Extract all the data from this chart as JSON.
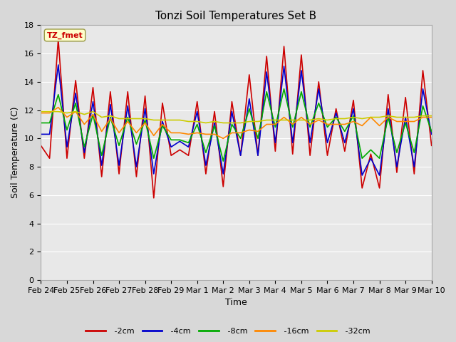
{
  "title": "Tonzi Soil Temperatures Set B",
  "xlabel": "Time",
  "ylabel": "Soil Temperature (C)",
  "legend_label": "TZ_fmet",
  "ylim": [
    0,
    18
  ],
  "yticks": [
    0,
    2,
    4,
    6,
    8,
    10,
    12,
    14,
    16,
    18
  ],
  "x_labels": [
    "Feb 24",
    "Feb 25",
    "Feb 26",
    "Feb 27",
    "Feb 28",
    "Feb 29",
    "Mar 1",
    "Mar 2",
    "Mar 3",
    "Mar 4",
    "Mar 5",
    "Mar 6",
    "Mar 7",
    "Mar 8",
    "Mar 9",
    "Mar 10"
  ],
  "series": {
    "-2cm": {
      "color": "#cc0000",
      "data": [
        9.5,
        8.6,
        17.0,
        8.6,
        14.1,
        8.6,
        13.6,
        7.3,
        13.3,
        7.5,
        13.3,
        7.3,
        13.0,
        5.8,
        12.5,
        8.8,
        9.2,
        8.8,
        12.6,
        7.5,
        11.9,
        6.6,
        12.6,
        8.8,
        14.5,
        8.8,
        15.8,
        9.1,
        16.5,
        8.9,
        15.9,
        8.8,
        14.0,
        8.8,
        12.1,
        9.1,
        12.7,
        6.5,
        8.9,
        6.5,
        13.1,
        7.6,
        12.9,
        7.5,
        14.8,
        9.5
      ]
    },
    "-4cm": {
      "color": "#0000cc",
      "data": [
        10.3,
        10.3,
        15.2,
        9.4,
        13.2,
        9.0,
        12.6,
        8.1,
        12.4,
        8.1,
        12.3,
        8.0,
        12.1,
        7.5,
        11.2,
        9.4,
        9.8,
        9.4,
        11.9,
        8.1,
        11.1,
        7.5,
        11.9,
        8.8,
        12.8,
        8.8,
        14.7,
        9.7,
        15.1,
        9.7,
        14.8,
        9.7,
        13.5,
        9.7,
        11.8,
        9.7,
        12.1,
        7.4,
        8.6,
        7.4,
        12.1,
        8.0,
        11.5,
        8.0,
        13.5,
        10.3
      ]
    },
    "-8cm": {
      "color": "#00aa00",
      "data": [
        11.1,
        11.1,
        13.1,
        10.6,
        12.5,
        9.4,
        11.7,
        8.8,
        11.5,
        9.5,
        11.5,
        9.6,
        11.3,
        8.6,
        10.9,
        9.9,
        9.9,
        9.7,
        11.0,
        9.0,
        10.9,
        8.4,
        11.0,
        10.0,
        12.1,
        10.0,
        13.3,
        10.8,
        13.5,
        10.8,
        13.3,
        10.8,
        12.5,
        10.8,
        11.5,
        10.5,
        11.6,
        8.6,
        9.2,
        8.6,
        11.5,
        9.0,
        11.1,
        9.0,
        12.3,
        10.5
      ]
    },
    "-16cm": {
      "color": "#ff8800",
      "data": [
        11.8,
        11.8,
        12.2,
        11.5,
        11.9,
        11.0,
        11.7,
        10.5,
        11.4,
        10.4,
        11.2,
        10.4,
        11.1,
        10.2,
        11.0,
        10.4,
        10.4,
        10.3,
        10.4,
        10.3,
        10.3,
        10.0,
        10.4,
        10.4,
        10.6,
        10.5,
        11.0,
        11.0,
        11.5,
        11.0,
        11.5,
        11.0,
        11.3,
        11.0,
        11.0,
        11.0,
        11.2,
        10.9,
        11.5,
        10.9,
        11.5,
        11.2,
        11.2,
        11.2,
        11.5,
        11.5
      ]
    },
    "-32cm": {
      "color": "#cccc00",
      "data": [
        11.9,
        11.9,
        11.9,
        11.8,
        11.9,
        11.7,
        11.9,
        11.5,
        11.6,
        11.4,
        11.4,
        11.4,
        11.4,
        11.3,
        11.3,
        11.3,
        11.3,
        11.2,
        11.2,
        11.1,
        11.2,
        11.1,
        11.1,
        11.1,
        11.2,
        11.2,
        11.3,
        11.3,
        11.3,
        11.3,
        11.3,
        11.3,
        11.4,
        11.3,
        11.4,
        11.4,
        11.5,
        11.4,
        11.5,
        11.5,
        11.6,
        11.5,
        11.5,
        11.5,
        11.6,
        11.6
      ]
    }
  },
  "background_color": "#d8d8d8",
  "plot_bg_color": "#d8d8d8",
  "plot_inner_bg": "#e8e8e8",
  "grid_color": "#ffffff",
  "title_fontsize": 11,
  "axis_label_fontsize": 9,
  "tick_fontsize": 8
}
